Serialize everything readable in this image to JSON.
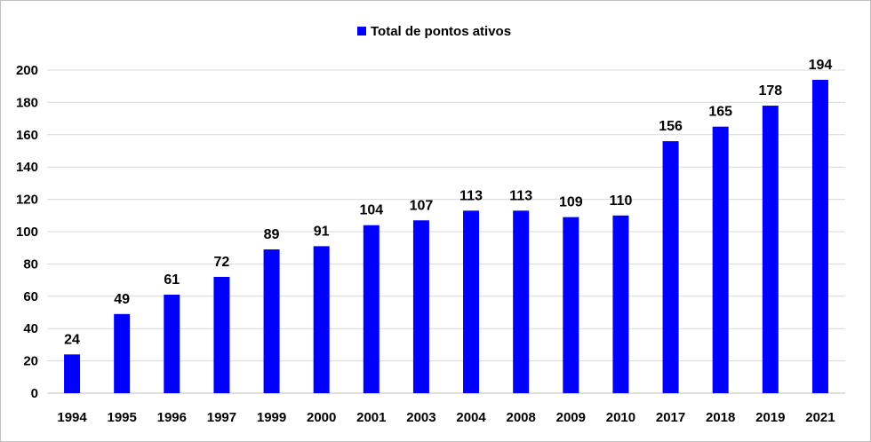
{
  "chart_data": {
    "type": "bar",
    "title": "",
    "xlabel": "",
    "ylabel": "",
    "categories": [
      "1994",
      "1995",
      "1996",
      "1997",
      "1999",
      "2000",
      "2001",
      "2003",
      "2004",
      "2008",
      "2009",
      "2010",
      "2017",
      "2018",
      "2019",
      "2021"
    ],
    "series": [
      {
        "name": "Total de pontos ativos",
        "color": "#0000ff",
        "values": [
          24,
          49,
          61,
          72,
          89,
          91,
          104,
          107,
          113,
          113,
          109,
          110,
          156,
          165,
          178,
          194
        ]
      }
    ],
    "ylim": [
      0,
      200
    ],
    "yticks": [
      0,
      20,
      40,
      60,
      80,
      100,
      120,
      140,
      160,
      180,
      200
    ],
    "grid": true,
    "legend_position": "top-center",
    "data_labels": true
  }
}
